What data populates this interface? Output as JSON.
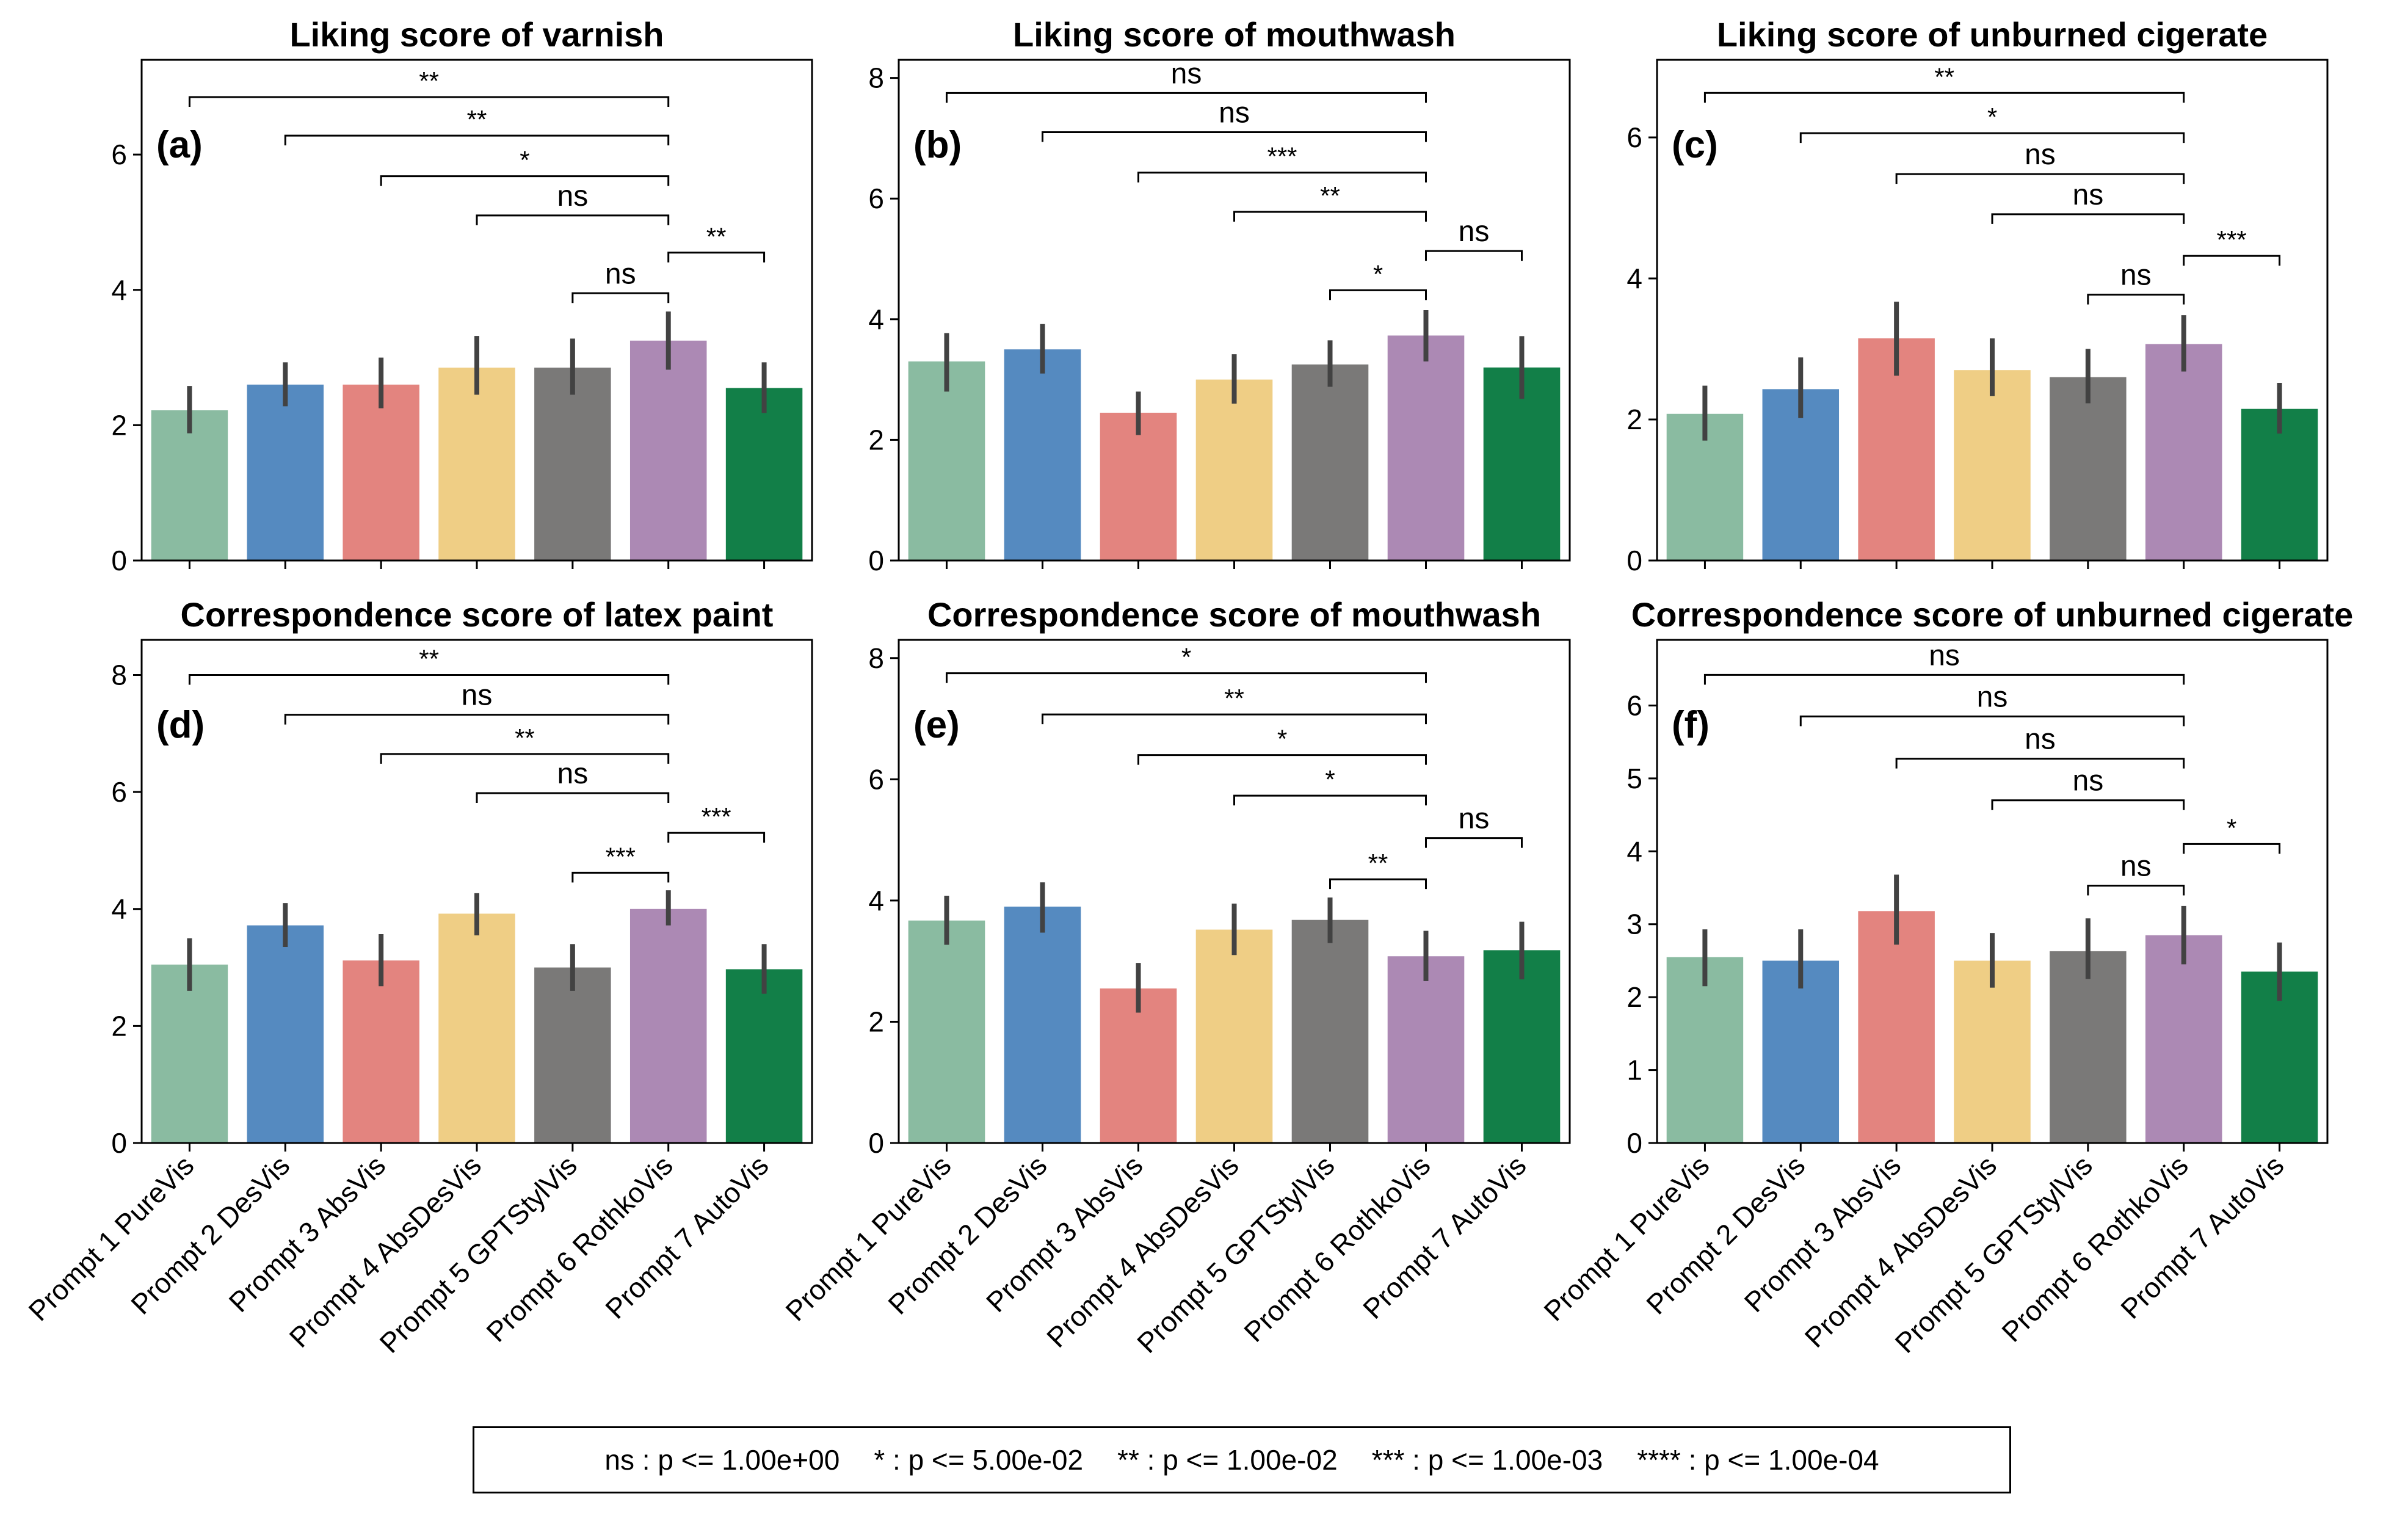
{
  "colors": [
    "#8abba1",
    "#558ac0",
    "#e3847f",
    "#efce85",
    "#7a7978",
    "#ac89b4",
    "#127f48"
  ],
  "legend": {
    "ns": "ns : p <= 1.00e+00",
    "one": "* : p <= 5.00e-02",
    "two": "** : p <= 1.00e-02",
    "three": "*** : p <= 1.00e-03",
    "four": "**** : p <= 1.00e-04"
  },
  "chart_data": [
    {
      "type": "bar",
      "panel": "(a)",
      "title": "Liking score of varnish",
      "categories": [
        "Prompt 1 PureVis",
        "Prompt 2 DesVis",
        "Prompt 3 AbsVis",
        "Prompt 4 AbsDesVis",
        "Prompt 5 GPTStylVis",
        "Prompt 6 RothkoVis",
        "Prompt 7 AutoVis"
      ],
      "values": [
        2.22,
        2.6,
        2.6,
        2.85,
        2.85,
        3.25,
        2.55
      ],
      "errors": [
        [
          1.88,
          2.58
        ],
        [
          2.28,
          2.93
        ],
        [
          2.25,
          3.0
        ],
        [
          2.45,
          3.32
        ],
        [
          2.45,
          3.28
        ],
        [
          2.82,
          3.68
        ],
        [
          2.18,
          2.93
        ]
      ],
      "ylim": [
        0,
        7.4
      ],
      "yticks": [
        0,
        2,
        4,
        6
      ],
      "show_xlabels": false,
      "significance": [
        {
          "from": 0,
          "to": 5,
          "label": "**",
          "y": 6.85
        },
        {
          "from": 1,
          "to": 5,
          "label": "**",
          "y": 6.28
        },
        {
          "from": 2,
          "to": 5,
          "label": "*",
          "y": 5.68
        },
        {
          "from": 3,
          "to": 5,
          "label": "ns",
          "y": 5.1
        },
        {
          "from": 4,
          "to": 5,
          "label": "ns",
          "y": 3.95
        },
        {
          "from": 5,
          "to": 6,
          "label": "**",
          "y": 4.55
        }
      ]
    },
    {
      "type": "bar",
      "panel": "(b)",
      "title": "Liking score of mouthwash",
      "categories": [
        "Prompt 1 PureVis",
        "Prompt 2 DesVis",
        "Prompt 3 AbsVis",
        "Prompt 4 AbsDesVis",
        "Prompt 5 GPTStylVis",
        "Prompt 6 RothkoVis",
        "Prompt 7 AutoVis"
      ],
      "values": [
        3.3,
        3.5,
        2.45,
        3.0,
        3.25,
        3.73,
        3.2
      ],
      "errors": [
        [
          2.8,
          3.77
        ],
        [
          3.1,
          3.92
        ],
        [
          2.08,
          2.8
        ],
        [
          2.6,
          3.42
        ],
        [
          2.88,
          3.65
        ],
        [
          3.3,
          4.15
        ],
        [
          2.68,
          3.72
        ]
      ],
      "ylim": [
        0,
        8.3
      ],
      "yticks": [
        0,
        2,
        4,
        6,
        8
      ],
      "show_xlabels": false,
      "significance": [
        {
          "from": 0,
          "to": 5,
          "label": "ns",
          "y": 7.75
        },
        {
          "from": 1,
          "to": 5,
          "label": "ns",
          "y": 7.1
        },
        {
          "from": 2,
          "to": 5,
          "label": "***",
          "y": 6.43
        },
        {
          "from": 3,
          "to": 5,
          "label": "**",
          "y": 5.78
        },
        {
          "from": 4,
          "to": 5,
          "label": "*",
          "y": 4.48
        },
        {
          "from": 5,
          "to": 6,
          "label": "ns",
          "y": 5.13
        }
      ]
    },
    {
      "type": "bar",
      "panel": "(c)",
      "title": "Liking score of unburned cigerate",
      "categories": [
        "Prompt 1 PureVis",
        "Prompt 2 DesVis",
        "Prompt 3 AbsVis",
        "Prompt 4 AbsDesVis",
        "Prompt 5 GPTStylVis",
        "Prompt 6 RothkoVis",
        "Prompt 7 AutoVis"
      ],
      "values": [
        2.08,
        2.43,
        3.15,
        2.7,
        2.6,
        3.07,
        2.15
      ],
      "errors": [
        [
          1.7,
          2.48
        ],
        [
          2.02,
          2.88
        ],
        [
          2.62,
          3.67
        ],
        [
          2.33,
          3.15
        ],
        [
          2.23,
          3.0
        ],
        [
          2.68,
          3.48
        ],
        [
          1.8,
          2.52
        ]
      ],
      "ylim": [
        0,
        7.1
      ],
      "yticks": [
        0,
        2,
        4,
        6
      ],
      "show_xlabels": false,
      "significance": [
        {
          "from": 0,
          "to": 5,
          "label": "**",
          "y": 6.63
        },
        {
          "from": 1,
          "to": 5,
          "label": "*",
          "y": 6.06
        },
        {
          "from": 2,
          "to": 5,
          "label": "ns",
          "y": 5.48
        },
        {
          "from": 3,
          "to": 5,
          "label": "ns",
          "y": 4.91
        },
        {
          "from": 4,
          "to": 5,
          "label": "ns",
          "y": 3.77
        },
        {
          "from": 5,
          "to": 6,
          "label": "***",
          "y": 4.32
        }
      ]
    },
    {
      "type": "bar",
      "panel": "(d)",
      "title": "Correspondence score of latex paint",
      "categories": [
        "Prompt 1 PureVis",
        "Prompt 2 DesVis",
        "Prompt 3 AbsVis",
        "Prompt 4 AbsDesVis",
        "Prompt 5 GPTStylVis",
        "Prompt 6 RothkoVis",
        "Prompt 7 AutoVis"
      ],
      "values": [
        3.05,
        3.72,
        3.12,
        3.92,
        3.0,
        4.0,
        2.97
      ],
      "errors": [
        [
          2.6,
          3.5
        ],
        [
          3.35,
          4.1
        ],
        [
          2.68,
          3.57
        ],
        [
          3.55,
          4.27
        ],
        [
          2.6,
          3.4
        ],
        [
          3.72,
          4.32
        ],
        [
          2.55,
          3.4
        ]
      ],
      "ylim": [
        0,
        8.6
      ],
      "yticks": [
        0,
        2,
        4,
        6,
        8
      ],
      "show_xlabels": true,
      "significance": [
        {
          "from": 0,
          "to": 5,
          "label": "**",
          "y": 8.0
        },
        {
          "from": 1,
          "to": 5,
          "label": "ns",
          "y": 7.32
        },
        {
          "from": 2,
          "to": 5,
          "label": "**",
          "y": 6.65
        },
        {
          "from": 3,
          "to": 5,
          "label": "ns",
          "y": 5.98
        },
        {
          "from": 4,
          "to": 5,
          "label": "***",
          "y": 4.62
        },
        {
          "from": 5,
          "to": 6,
          "label": "***",
          "y": 5.3
        }
      ]
    },
    {
      "type": "bar",
      "panel": "(e)",
      "title": "Correspondence score of mouthwash",
      "categories": [
        "Prompt 1 PureVis",
        "Prompt 2 DesVis",
        "Prompt 3 AbsVis",
        "Prompt 4 AbsDesVis",
        "Prompt 5 GPTStylVis",
        "Prompt 6 RothkoVis",
        "Prompt 7 AutoVis"
      ],
      "values": [
        3.67,
        3.9,
        2.55,
        3.52,
        3.68,
        3.08,
        3.18
      ],
      "errors": [
        [
          3.27,
          4.08
        ],
        [
          3.47,
          4.3
        ],
        [
          2.15,
          2.97
        ],
        [
          3.1,
          3.95
        ],
        [
          3.3,
          4.05
        ],
        [
          2.67,
          3.5
        ],
        [
          2.7,
          3.65
        ]
      ],
      "ylim": [
        0,
        8.3
      ],
      "yticks": [
        0,
        2,
        4,
        6,
        8
      ],
      "show_xlabels": true,
      "significance": [
        {
          "from": 0,
          "to": 5,
          "label": "*",
          "y": 7.75
        },
        {
          "from": 1,
          "to": 5,
          "label": "**",
          "y": 7.07
        },
        {
          "from": 2,
          "to": 5,
          "label": "*",
          "y": 6.4
        },
        {
          "from": 3,
          "to": 5,
          "label": "*",
          "y": 5.73
        },
        {
          "from": 4,
          "to": 5,
          "label": "**",
          "y": 4.35
        },
        {
          "from": 5,
          "to": 6,
          "label": "ns",
          "y": 5.03
        }
      ]
    },
    {
      "type": "bar",
      "panel": "(f)",
      "title": "Correspondence score of unburned cigerate",
      "categories": [
        "Prompt 1 PureVis",
        "Prompt 2 DesVis",
        "Prompt 3 AbsVis",
        "Prompt 4 AbsDesVis",
        "Prompt 5 GPTStylVis",
        "Prompt 6 RothkoVis",
        "Prompt 7 AutoVis"
      ],
      "values": [
        2.55,
        2.5,
        3.18,
        2.5,
        2.63,
        2.85,
        2.35
      ],
      "errors": [
        [
          2.15,
          2.93
        ],
        [
          2.12,
          2.93
        ],
        [
          2.72,
          3.68
        ],
        [
          2.13,
          2.88
        ],
        [
          2.25,
          3.08
        ],
        [
          2.45,
          3.25
        ],
        [
          1.95,
          2.75
        ]
      ],
      "ylim": [
        0,
        6.9
      ],
      "yticks": [
        0,
        1,
        2,
        3,
        4,
        5,
        6
      ],
      "show_xlabels": true,
      "significance": [
        {
          "from": 0,
          "to": 5,
          "label": "ns",
          "y": 6.42
        },
        {
          "from": 1,
          "to": 5,
          "label": "ns",
          "y": 5.85
        },
        {
          "from": 2,
          "to": 5,
          "label": "ns",
          "y": 5.27
        },
        {
          "from": 3,
          "to": 5,
          "label": "ns",
          "y": 4.7
        },
        {
          "from": 4,
          "to": 5,
          "label": "ns",
          "y": 3.53
        },
        {
          "from": 5,
          "to": 6,
          "label": "*",
          "y": 4.1
        }
      ]
    }
  ]
}
